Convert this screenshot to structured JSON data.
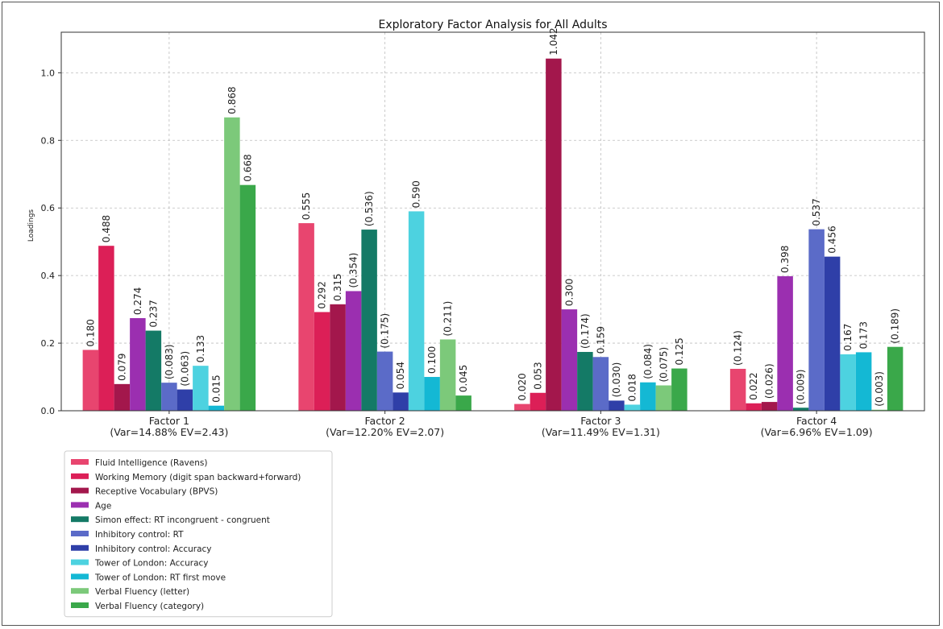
{
  "chart_data": {
    "type": "bar",
    "title": "Exploratory Factor Analysis for All Adults",
    "xlabel": "",
    "ylabel": "Loadings",
    "ylim": [
      0,
      1.12
    ],
    "yticks": [
      "0.0",
      "0.2",
      "0.4",
      "0.6",
      "0.8",
      "1.0"
    ],
    "grid": true,
    "legend_position": "bottom-left",
    "categories": [
      "Factor 1\n(Var=14.88% EV=2.43)",
      "Factor 2\n(Var=12.20% EV=2.07)",
      "Factor 3\n(Var=11.49% EV=1.31)",
      "Factor 4\n(Var=6.96% EV=1.09)"
    ],
    "series": [
      {
        "name": "Fluid Intelligence (Ravens)",
        "color": "#e8456f",
        "values": [
          0.18,
          0.555,
          0.02,
          0.124
        ],
        "labels": [
          "0.180",
          "0.555",
          "0.020",
          "(0.124)"
        ]
      },
      {
        "name": "Working Memory (digit span backward+forward)",
        "color": "#dc1f57",
        "values": [
          0.488,
          0.292,
          0.053,
          0.022
        ],
        "labels": [
          "0.488",
          "0.292",
          "0.053",
          "0.022"
        ]
      },
      {
        "name": "Receptive Vocabulary (BPVS)",
        "color": "#a3174c",
        "values": [
          0.079,
          0.315,
          1.042,
          0.026
        ],
        "labels": [
          "0.079",
          "0.315",
          "1.042",
          "(0.026)"
        ]
      },
      {
        "name": "Age",
        "color": "#9b2fb0",
        "values": [
          0.274,
          0.354,
          0.3,
          0.398
        ],
        "labels": [
          "0.274",
          "(0.354)",
          "0.300",
          "0.398"
        ]
      },
      {
        "name": "Simon effect: RT incongruent - congruent",
        "color": "#147a66",
        "values": [
          0.237,
          0.536,
          0.174,
          0.009
        ],
        "labels": [
          "0.237",
          "(0.536)",
          "(0.174)",
          "(0.009)"
        ]
      },
      {
        "name": "Inhibitory control: RT",
        "color": "#5b6bc8",
        "values": [
          0.083,
          0.175,
          0.159,
          0.537
        ],
        "labels": [
          "(0.083)",
          "(0.175)",
          "0.159",
          "0.537"
        ]
      },
      {
        "name": "Inhibitory control: Accuracy",
        "color": "#2f3fa8",
        "values": [
          0.063,
          0.054,
          0.03,
          0.456
        ],
        "labels": [
          "(0.063)",
          "0.054",
          "(0.030)",
          "0.456"
        ]
      },
      {
        "name": "Tower of London: Accuracy",
        "color": "#4dd2e0",
        "values": [
          0.133,
          0.59,
          0.018,
          0.167
        ],
        "labels": [
          "0.133",
          "0.590",
          "0.018",
          "0.167"
        ]
      },
      {
        "name": "Tower of London: RT first move",
        "color": "#14b8d4",
        "values": [
          0.015,
          0.1,
          0.084,
          0.173
        ],
        "labels": [
          "0.015",
          "0.100",
          "(0.084)",
          "0.173"
        ]
      },
      {
        "name": "Verbal Fluency (letter)",
        "color": "#7cc97a",
        "values": [
          0.868,
          0.211,
          0.075,
          0.003
        ],
        "labels": [
          "0.868",
          "(0.211)",
          "(0.075)",
          "(0.003)"
        ]
      },
      {
        "name": "Verbal Fluency (category)",
        "color": "#3aa84a",
        "values": [
          0.668,
          0.045,
          0.125,
          0.189
        ],
        "labels": [
          "0.668",
          "0.045",
          "0.125",
          "(0.189)"
        ]
      }
    ]
  }
}
